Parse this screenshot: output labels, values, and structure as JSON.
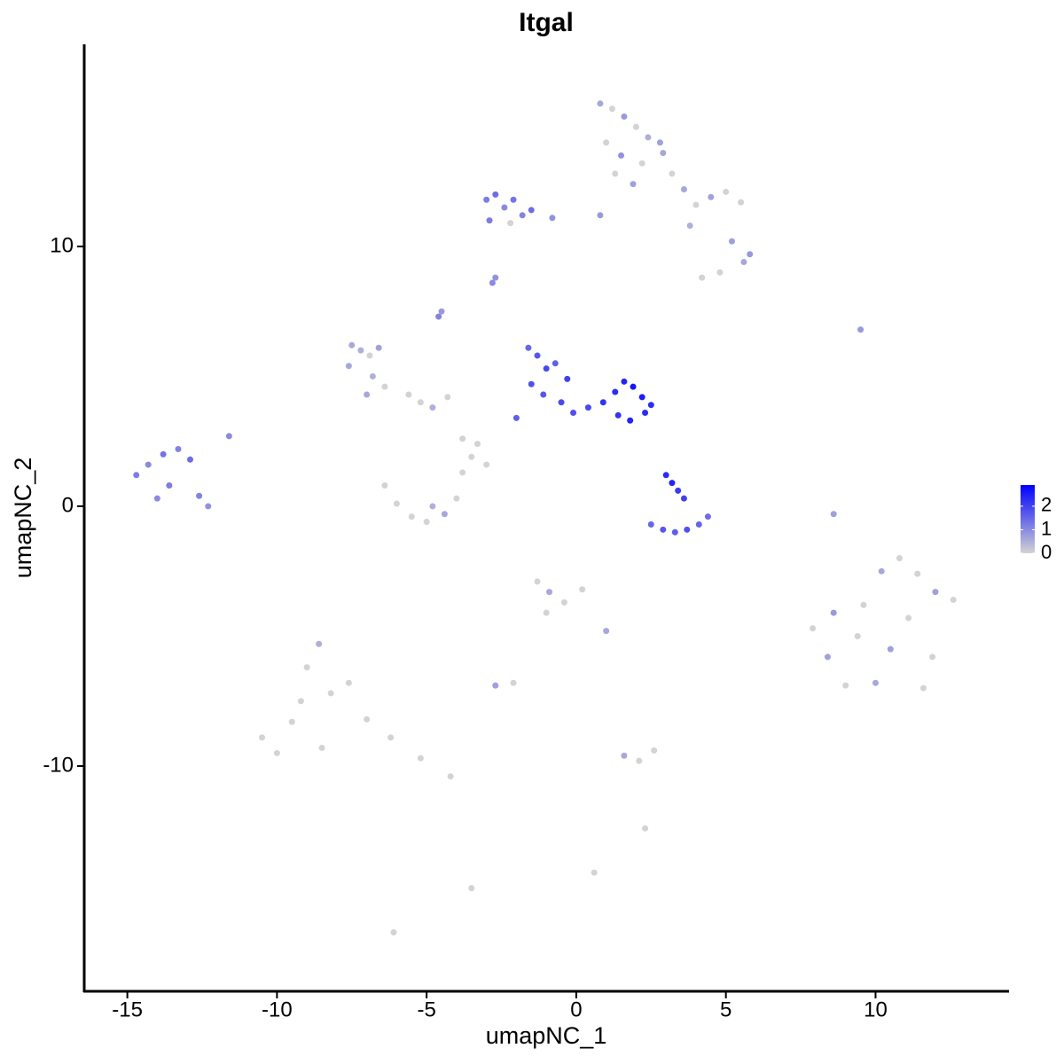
{
  "chart_data": {
    "type": "scatter",
    "title": "Itgal",
    "x_label": "umapNC_1",
    "y_label": "umapNC_2",
    "xlim": [
      -16.44,
      14.46
    ],
    "ylim": [
      -18.67,
      17.78
    ],
    "xticks": [
      -15,
      -10,
      -5,
      0,
      5,
      10
    ],
    "yticks": [
      -10,
      0,
      10
    ],
    "colorbar": {
      "low": "#d3d3d3",
      "high": "#0000ff",
      "lim": [
        0,
        2.9
      ],
      "ticks": [
        0,
        1,
        2
      ]
    },
    "x": [
      0.8,
      1.2,
      1.6,
      2.0,
      2.4,
      2.8,
      1.0,
      1.5,
      2.2,
      2.9,
      1.3,
      1.9,
      3.2,
      3.6,
      4.0,
      4.5,
      5.0,
      5.5,
      5.8,
      5.6,
      4.8,
      4.2,
      3.8,
      5.2,
      -3.0,
      -2.7,
      -2.4,
      -2.1,
      -1.8,
      -1.5,
      -2.9,
      -2.2,
      -0.8,
      0.8,
      -2.8,
      -2.7,
      -4.6,
      -4.5,
      -7.5,
      -7.2,
      -6.9,
      -6.6,
      -7.6,
      -6.8,
      -6.4,
      -7.0,
      -5.6,
      -5.2,
      -4.8,
      -4.3,
      -3.8,
      -3.3,
      -3.0,
      -3.5,
      -1.6,
      -1.3,
      -1.0,
      -0.7,
      -0.3,
      -1.5,
      -1.1,
      -0.5,
      -0.1,
      -2.0,
      0.4,
      0.9,
      1.3,
      1.6,
      1.9,
      2.2,
      2.5,
      1.4,
      1.8,
      2.3,
      2.5,
      2.9,
      3.3,
      3.7,
      4.1,
      4.4,
      3.0,
      3.2,
      3.4,
      3.6,
      -14.7,
      -14.3,
      -13.8,
      -13.3,
      -12.9,
      -13.6,
      -14.0,
      -12.6,
      -12.3,
      -11.6,
      -6.4,
      -6.0,
      -5.5,
      -5.0,
      -4.4,
      -4.0,
      -4.8,
      -3.8,
      -1.3,
      -0.9,
      -0.4,
      0.2,
      -1.0,
      1.0,
      7.9,
      8.4,
      9.0,
      9.6,
      10.2,
      10.8,
      11.4,
      12.0,
      12.6,
      8.6,
      9.4,
      10.5,
      11.1,
      11.9,
      10.0,
      11.6,
      -10.5,
      -10.0,
      -9.5,
      -9.0,
      -8.6,
      -8.2,
      -7.6,
      -7.0,
      -9.2,
      -8.5,
      -6.2,
      -5.2,
      -4.2,
      -3.5,
      1.6,
      2.1,
      2.6,
      2.3,
      -2.7,
      -2.1,
      9.5,
      8.6,
      -6.1,
      0.6
    ],
    "y": [
      15.5,
      15.3,
      15.0,
      14.6,
      14.2,
      14.0,
      14.0,
      13.5,
      13.2,
      13.6,
      12.8,
      12.4,
      12.8,
      12.2,
      11.6,
      11.9,
      12.1,
      11.7,
      9.7,
      9.4,
      9.0,
      8.8,
      10.8,
      10.2,
      11.8,
      12.0,
      11.5,
      11.8,
      11.2,
      11.4,
      11.0,
      10.9,
      11.1,
      11.2,
      8.6,
      8.8,
      7.3,
      7.5,
      6.2,
      6.0,
      5.8,
      6.1,
      5.4,
      5.0,
      4.6,
      4.3,
      4.3,
      4.0,
      3.8,
      4.2,
      2.6,
      2.4,
      1.6,
      1.9,
      6.1,
      5.8,
      5.3,
      5.5,
      4.9,
      4.7,
      4.3,
      4.0,
      3.6,
      3.4,
      3.8,
      4.0,
      4.4,
      4.8,
      4.6,
      4.2,
      3.9,
      3.5,
      3.3,
      3.6,
      -0.7,
      -0.9,
      -1.0,
      -0.9,
      -0.7,
      -0.4,
      1.2,
      0.9,
      0.6,
      0.3,
      1.2,
      1.6,
      2.0,
      2.2,
      1.8,
      0.8,
      0.3,
      0.4,
      0.0,
      2.7,
      0.8,
      0.1,
      -0.4,
      -0.6,
      -0.3,
      0.3,
      0.0,
      1.3,
      -2.9,
      -3.3,
      -3.7,
      -3.2,
      -4.1,
      -4.8,
      -4.7,
      -5.8,
      -6.9,
      -3.8,
      -2.5,
      -2.0,
      -2.6,
      -3.3,
      -3.6,
      -4.1,
      -5.0,
      -5.5,
      -4.3,
      -5.8,
      -6.8,
      -7.0,
      -8.9,
      -9.5,
      -8.3,
      -6.2,
      -5.3,
      -7.2,
      -6.8,
      -8.2,
      -7.5,
      -9.3,
      -8.9,
      -9.7,
      -10.4,
      -14.7,
      -9.6,
      -9.8,
      -9.4,
      -12.4,
      -6.9,
      -6.8,
      6.8,
      -0.3,
      -16.4,
      -14.1
    ],
    "values": [
      0.6,
      0,
      0.8,
      0,
      0.5,
      0.7,
      0,
      0.9,
      0,
      0.6,
      0,
      0.7,
      0,
      0.6,
      0,
      0.7,
      0,
      0,
      0.8,
      0.6,
      0,
      0,
      0.5,
      0.7,
      1.2,
      1.4,
      1.0,
      1.3,
      1.1,
      1.4,
      1.2,
      0,
      0.9,
      0.8,
      1.0,
      0.9,
      1.1,
      0.8,
      0.6,
      0.5,
      0,
      0.7,
      0.6,
      0.5,
      0,
      0.6,
      0,
      0,
      0.5,
      0,
      0,
      0,
      0,
      0,
      1.5,
      1.7,
      1.9,
      1.6,
      2.0,
      1.8,
      1.7,
      1.9,
      1.8,
      1.6,
      1.9,
      2.2,
      2.3,
      2.4,
      2.6,
      2.5,
      2.3,
      2.2,
      2.4,
      2.3,
      1.5,
      1.7,
      1.6,
      1.8,
      1.5,
      1.4,
      2.3,
      2.4,
      2.1,
      2.0,
      1.2,
      1.0,
      1.3,
      1.1,
      1.4,
      1.2,
      1.0,
      1.1,
      0.9,
      1.0,
      0,
      0,
      0,
      0,
      0.6,
      0,
      0.5,
      0,
      0,
      0.6,
      0,
      0,
      0,
      0.6,
      0,
      0.7,
      0,
      0,
      0.6,
      0,
      0,
      0.7,
      0,
      0.8,
      0,
      0.7,
      0,
      0,
      0.6,
      0,
      0,
      0,
      0,
      0,
      0.5,
      0,
      0,
      0,
      0,
      0,
      0,
      0,
      0,
      0,
      0.6,
      0,
      0,
      0,
      0.7,
      0,
      0.8,
      0.7,
      0,
      0
    ]
  }
}
